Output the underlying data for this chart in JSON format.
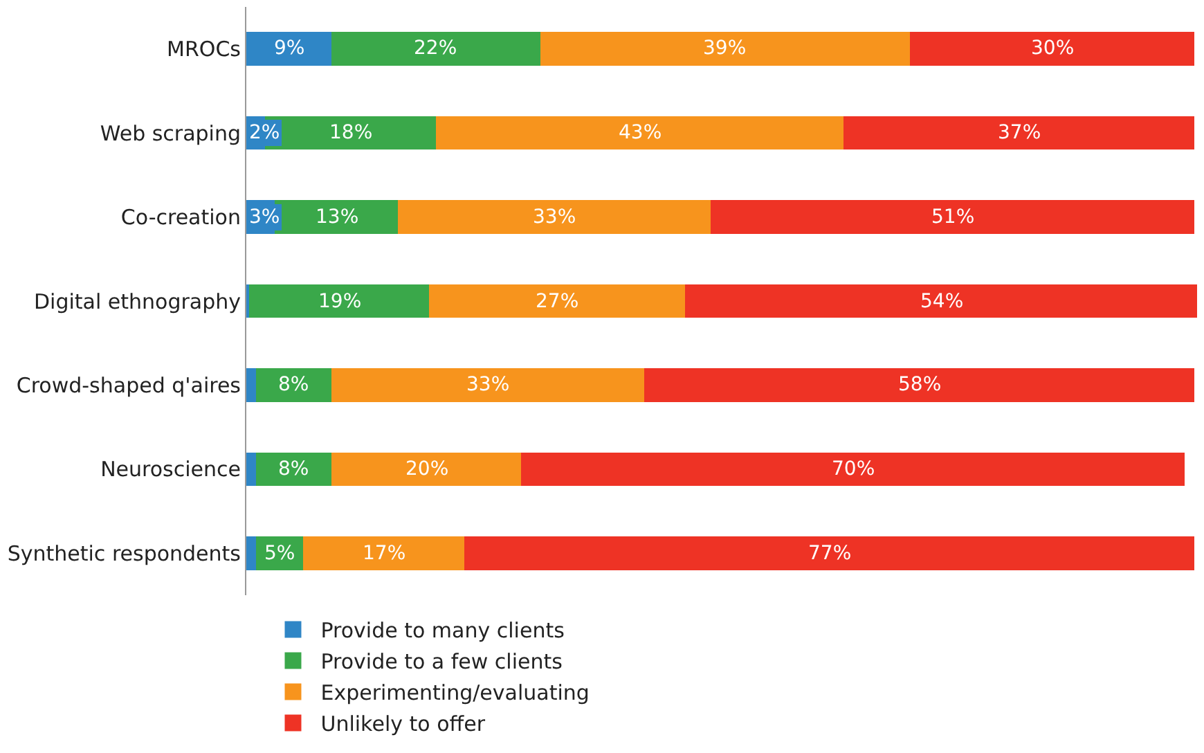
{
  "chart_data": {
    "type": "bar",
    "orientation": "horizontal",
    "stacked": true,
    "tick_labels": "y",
    "legend": "bottom",
    "categories": [
      "MROCs",
      "Web scraping",
      "Co-creation",
      "Digital ethnography",
      "Crowd-shaped q'aires",
      "Neuroscience",
      "Synthetic respondents"
    ],
    "series": [
      {
        "name": "Provide to many clients",
        "color": "#2f86c6",
        "values": [
          9,
          2,
          3,
          0.3,
          1,
          1,
          1
        ],
        "value_labels": [
          "9%",
          "2%",
          "3%",
          null,
          null,
          null,
          null
        ]
      },
      {
        "name": "Provide to a few clients",
        "color": "#3aa84a",
        "values": [
          22,
          18,
          13,
          19,
          8,
          8,
          5
        ],
        "value_labels": [
          "22%",
          "18%",
          "13%",
          "19%",
          "8%",
          "8%",
          "5%"
        ]
      },
      {
        "name": "Experimenting/evaluating",
        "color": "#f7941d",
        "values": [
          39,
          43,
          33,
          27,
          33,
          20,
          17
        ],
        "value_labels": [
          "39%",
          "43%",
          "33%",
          "27%",
          "33%",
          "20%",
          "17%"
        ]
      },
      {
        "name": "Unlikely to offer",
        "color": "#ee3325",
        "values": [
          30,
          37,
          51,
          54,
          58,
          70,
          77
        ],
        "value_labels": [
          "30%",
          "37%",
          "51%",
          "54%",
          "58%",
          "70%",
          "77%"
        ]
      }
    ]
  }
}
